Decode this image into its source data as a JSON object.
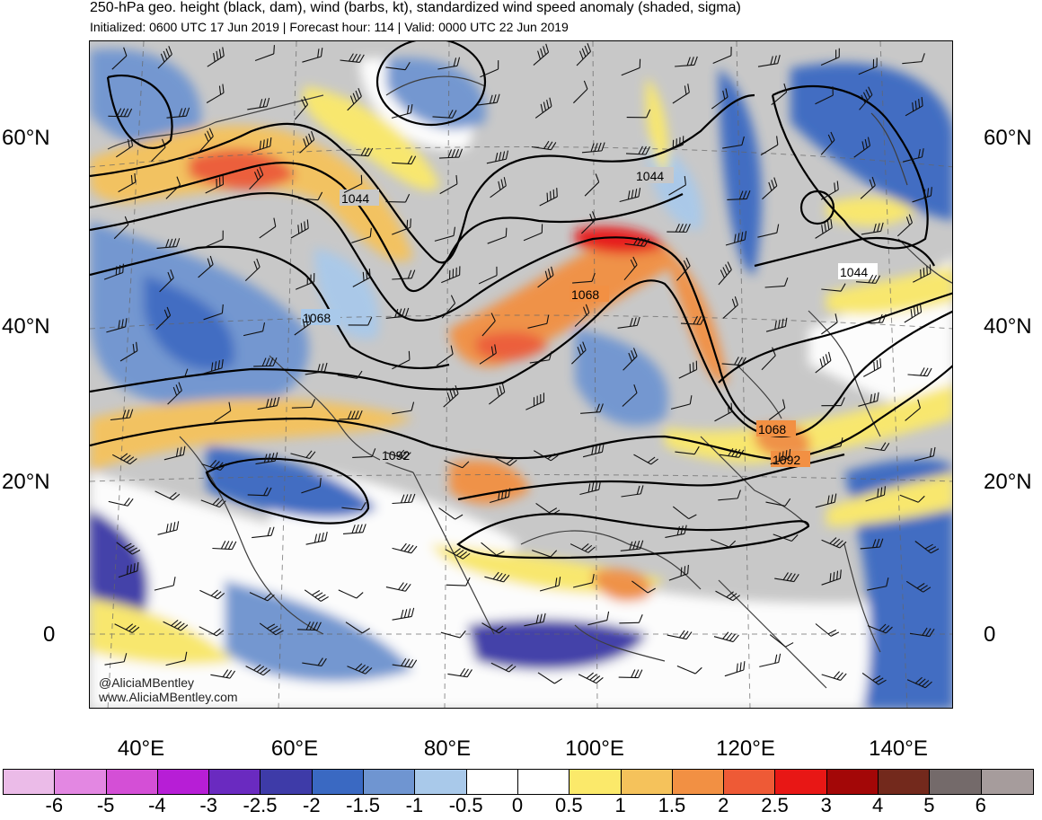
{
  "header": {
    "title": "250-hPa geo. height (black, dam), wind (barbs, kt), standardized wind speed anomaly (shaded, sigma)",
    "subtitle": "Initialized: 0600 UTC 17 Jun 2019 | Forecast hour: 114 | Valid: 0000 UTC 22 Jun 2019"
  },
  "map": {
    "lat_labels": [
      "60°N",
      "40°N",
      "20°N",
      "0"
    ],
    "lon_labels": [
      "40°E",
      "60°E",
      "80°E",
      "100°E",
      "120°E",
      "140°E"
    ],
    "contour_labels": [
      "1044",
      "1044",
      "1044",
      "1068",
      "1068",
      "1068",
      "1092",
      "1092"
    ],
    "credits": [
      "@AliciaMBentley",
      "www.AliciaMBentley.com"
    ],
    "colors": {
      "land_neutral": "#c8c8c8",
      "ocean_neutral": "#ffffff"
    }
  },
  "colorbar": {
    "labels": [
      "-6",
      "-5",
      "-4",
      "-3",
      "-2.5",
      "-2",
      "-1.5",
      "-1",
      "-0.5",
      "0",
      "0.5",
      "1",
      "1.5",
      "2",
      "2.5",
      "3",
      "4",
      "5",
      "6"
    ],
    "colors": [
      "#ebbbe8",
      "#e387e2",
      "#d44fd6",
      "#b71ed6",
      "#6a2ac0",
      "#3e3ba8",
      "#3a69c2",
      "#6f95d1",
      "#a9c9ea",
      "#ffffff",
      "#ffffff",
      "#fbe96a",
      "#f5c25b",
      "#f29043",
      "#ee5a36",
      "#e81715",
      "#a30707",
      "#73291c",
      "#746a6a",
      "#a69c9c"
    ]
  }
}
